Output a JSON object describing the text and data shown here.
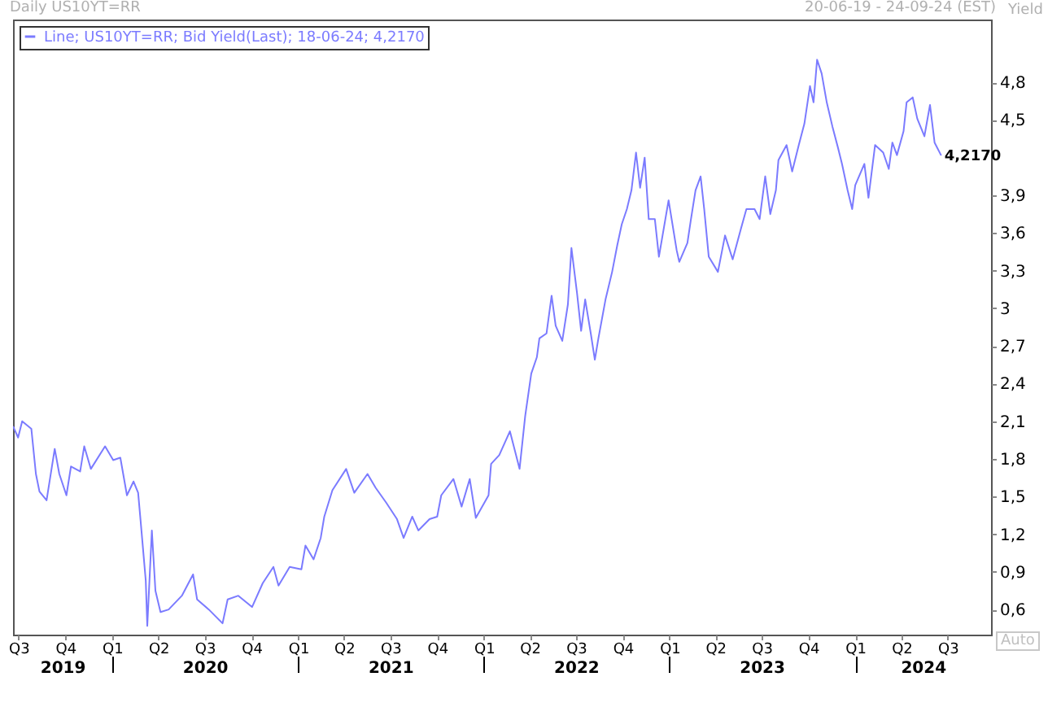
{
  "chart_data": {
    "type": "line",
    "title": "Daily US10YT=RR",
    "subtitle": "20-06-19 - 24-09-24 (EST)",
    "ylabel": "Yield",
    "x": [
      "2019-06-20",
      "2019-06-30",
      "2019-07-08",
      "2019-07-26",
      "2019-08-04",
      "2019-08-11",
      "2019-08-25",
      "2019-09-10",
      "2019-09-19",
      "2019-10-03",
      "2019-10-12",
      "2019-10-30",
      "2019-11-07",
      "2019-11-20",
      "2019-12-18",
      "2020-01-03",
      "2020-01-17",
      "2020-01-30",
      "2020-02-12",
      "2020-02-21",
      "2020-02-26",
      "2020-03-07",
      "2020-03-10",
      "2020-03-19",
      "2020-03-26",
      "2020-04-05",
      "2020-04-21",
      "2020-05-17",
      "2020-06-08",
      "2020-06-16",
      "2020-07-09",
      "2020-08-05",
      "2020-08-15",
      "2020-09-05",
      "2020-10-02",
      "2020-10-23",
      "2020-11-13",
      "2020-11-23",
      "2020-12-15",
      "2021-01-07",
      "2021-01-15",
      "2021-01-31",
      "2021-02-14",
      "2021-02-21",
      "2021-03-09",
      "2021-04-05",
      "2021-04-21",
      "2021-05-17",
      "2021-06-02",
      "2021-06-23",
      "2021-07-14",
      "2021-07-27",
      "2021-08-13",
      "2021-08-25",
      "2021-09-16",
      "2021-10-01",
      "2021-10-09",
      "2021-11-02",
      "2021-11-18",
      "2021-12-04",
      "2021-12-16",
      "2022-01-10",
      "2022-01-15",
      "2022-01-31",
      "2022-02-21",
      "2022-03-12",
      "2022-03-23",
      "2022-04-04",
      "2022-04-15",
      "2022-04-20",
      "2022-05-04",
      "2022-05-14",
      "2022-05-22",
      "2022-06-04",
      "2022-06-15",
      "2022-06-22",
      "2022-07-03",
      "2022-07-11",
      "2022-07-19",
      "2022-07-30",
      "2022-08-07",
      "2022-08-14",
      "2022-08-28",
      "2022-09-10",
      "2022-09-20",
      "2022-09-29",
      "2022-10-09",
      "2022-10-18",
      "2022-10-27",
      "2022-11-04",
      "2022-11-13",
      "2022-11-21",
      "2022-12-03",
      "2022-12-11",
      "2022-12-30",
      "2023-01-15",
      "2023-01-20",
      "2023-02-05",
      "2023-02-12",
      "2023-02-21",
      "2023-03-03",
      "2023-03-10",
      "2023-03-19",
      "2023-04-06",
      "2023-04-20",
      "2023-05-05",
      "2023-05-21",
      "2023-06-01",
      "2023-06-17",
      "2023-06-27",
      "2023-07-08",
      "2023-07-18",
      "2023-07-29",
      "2023-08-03",
      "2023-08-19",
      "2023-08-30",
      "2023-09-12",
      "2023-09-23",
      "2023-10-04",
      "2023-10-11",
      "2023-10-18",
      "2023-10-27",
      "2023-11-06",
      "2023-11-17",
      "2023-11-28",
      "2023-12-06",
      "2023-12-17",
      "2023-12-26",
      "2024-01-01",
      "2024-01-19",
      "2024-01-27",
      "2024-02-09",
      "2024-02-25",
      "2024-03-07",
      "2024-03-14",
      "2024-03-23",
      "2024-04-05",
      "2024-04-11",
      "2024-04-23",
      "2024-05-02",
      "2024-05-16",
      "2024-05-27",
      "2024-06-05",
      "2024-06-18"
    ],
    "series": [
      {
        "name": "Line; US10YT=RR; Bid Yield(Last); 18-06-24; 4,2170",
        "color": "#7b7bff",
        "values": [
          2.06,
          1.97,
          2.1,
          2.04,
          1.68,
          1.54,
          1.47,
          1.88,
          1.68,
          1.51,
          1.74,
          1.7,
          1.9,
          1.72,
          1.9,
          1.79,
          1.81,
          1.51,
          1.62,
          1.53,
          1.3,
          0.83,
          0.47,
          1.23,
          0.75,
          0.58,
          0.6,
          0.71,
          0.88,
          0.68,
          0.6,
          0.49,
          0.68,
          0.71,
          0.62,
          0.81,
          0.94,
          0.79,
          0.94,
          0.92,
          1.11,
          1.0,
          1.17,
          1.34,
          1.55,
          1.72,
          1.53,
          1.68,
          1.57,
          1.45,
          1.32,
          1.17,
          1.34,
          1.23,
          1.32,
          1.34,
          1.51,
          1.64,
          1.42,
          1.64,
          1.33,
          1.51,
          1.76,
          1.83,
          2.02,
          1.72,
          2.14,
          2.48,
          2.61,
          2.76,
          2.8,
          3.1,
          2.86,
          2.74,
          3.03,
          3.48,
          3.12,
          2.82,
          3.07,
          2.8,
          2.59,
          2.76,
          3.07,
          3.29,
          3.5,
          3.67,
          3.79,
          3.94,
          4.24,
          3.96,
          4.2,
          3.71,
          3.71,
          3.41,
          3.86,
          3.46,
          3.37,
          3.52,
          3.71,
          3.94,
          4.05,
          3.79,
          3.41,
          3.29,
          3.58,
          3.39,
          3.63,
          3.79,
          3.79,
          3.71,
          4.05,
          3.75,
          3.94,
          4.18,
          4.3,
          4.09,
          4.3,
          4.47,
          4.77,
          4.64,
          4.98,
          4.87,
          4.64,
          4.45,
          4.28,
          4.15,
          3.94,
          3.79,
          3.98,
          4.15,
          3.88,
          4.3,
          4.24,
          4.11,
          4.32,
          4.22,
          4.41,
          4.64,
          4.68,
          4.51,
          4.37,
          4.62,
          4.32,
          4.217
        ]
      }
    ],
    "xlim": [
      "2019-06-20",
      "2024-09-24"
    ],
    "xticks": [
      {
        "value": "2019-07-01",
        "label": "Q3"
      },
      {
        "value": "2019-10-01",
        "label": "Q4"
      },
      {
        "value": "2020-01-01",
        "label": "Q1"
      },
      {
        "value": "2020-04-01",
        "label": "Q2"
      },
      {
        "value": "2020-07-01",
        "label": "Q3"
      },
      {
        "value": "2020-10-01",
        "label": "Q4"
      },
      {
        "value": "2021-01-01",
        "label": "Q1"
      },
      {
        "value": "2021-04-01",
        "label": "Q2"
      },
      {
        "value": "2021-07-01",
        "label": "Q3"
      },
      {
        "value": "2021-10-01",
        "label": "Q4"
      },
      {
        "value": "2022-01-01",
        "label": "Q1"
      },
      {
        "value": "2022-04-01",
        "label": "Q2"
      },
      {
        "value": "2022-07-01",
        "label": "Q3"
      },
      {
        "value": "2022-10-01",
        "label": "Q4"
      },
      {
        "value": "2023-01-01",
        "label": "Q1"
      },
      {
        "value": "2023-04-01",
        "label": "Q2"
      },
      {
        "value": "2023-07-01",
        "label": "Q3"
      },
      {
        "value": "2023-10-01",
        "label": "Q4"
      },
      {
        "value": "2024-01-01",
        "label": "Q1"
      },
      {
        "value": "2024-04-01",
        "label": "Q2"
      },
      {
        "value": "2024-07-01",
        "label": "Q3"
      }
    ],
    "x2lim": [
      "2019-06-20",
      "2024-09-24"
    ],
    "x2ticks": [
      {
        "value": "2019-09-25",
        "label": "2019"
      },
      {
        "value": "2020-01-01",
        "label": null
      },
      {
        "value": "2020-07-01",
        "label": "2020"
      },
      {
        "value": "2021-01-01",
        "label": null
      },
      {
        "value": "2021-07-01",
        "label": "2021"
      },
      {
        "value": "2022-01-01",
        "label": null
      },
      {
        "value": "2022-07-01",
        "label": "2022"
      },
      {
        "value": "2023-01-01",
        "label": null
      },
      {
        "value": "2023-07-01",
        "label": "2023"
      },
      {
        "value": "2024-01-01",
        "label": null
      },
      {
        "value": "2024-05-13",
        "label": "2024"
      }
    ],
    "ylim": [
      0.4,
      5.3
    ],
    "yticks": [
      {
        "value": 0.6,
        "label": "0,6"
      },
      {
        "value": 0.9,
        "label": "0,9"
      },
      {
        "value": 1.2,
        "label": "1,2"
      },
      {
        "value": 1.5,
        "label": "1,5"
      },
      {
        "value": 1.8,
        "label": "1,8"
      },
      {
        "value": 2.1,
        "label": "2,1"
      },
      {
        "value": 2.4,
        "label": "2,4"
      },
      {
        "value": 2.7,
        "label": "2,7"
      },
      {
        "value": 3,
        "label": "3"
      },
      {
        "value": 3.3,
        "label": "3,3"
      },
      {
        "value": 3.6,
        "label": "3,6"
      },
      {
        "value": 3.9,
        "label": "3,9"
      },
      {
        "value": 4.5,
        "label": "4,5"
      },
      {
        "value": 4.8,
        "label": "4,8"
      }
    ],
    "annotations": [
      "4,2170",
      "Auto"
    ],
    "legend": "top left",
    "grid": false,
    "marker": "none",
    "line_style": "solid"
  }
}
